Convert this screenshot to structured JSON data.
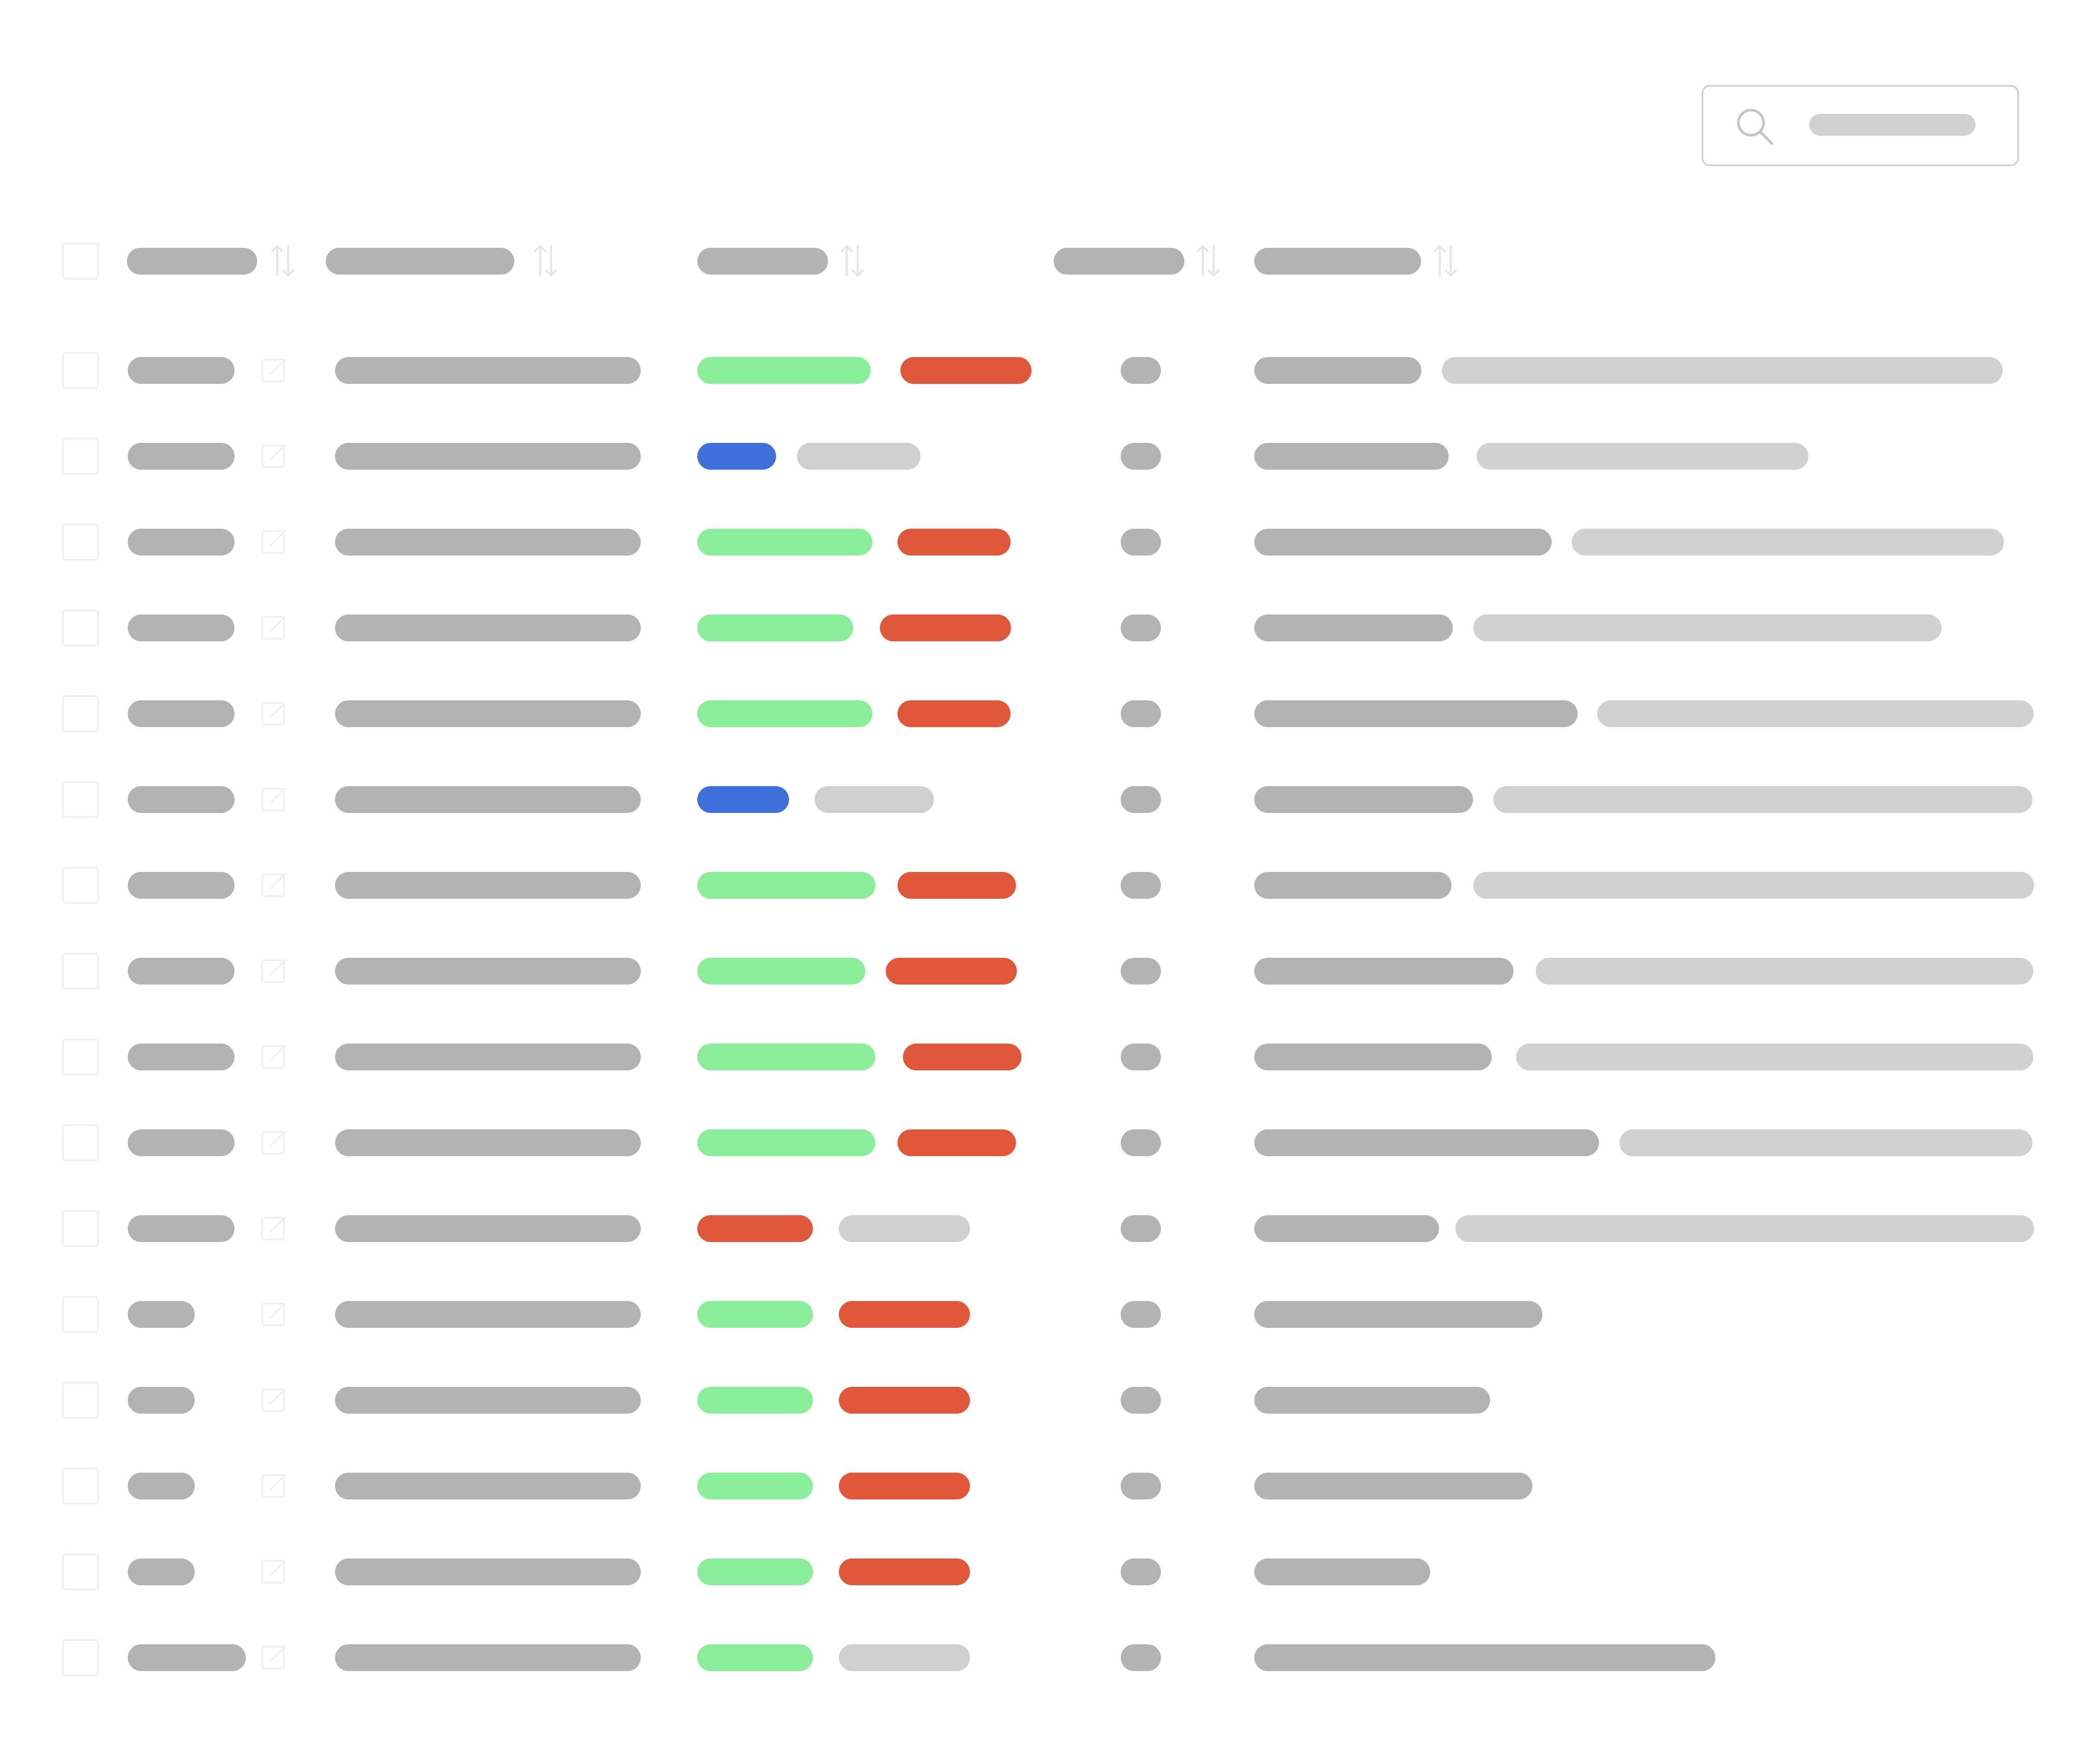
{
  "colors": {
    "text_placeholder": "#b3b3b3",
    "text_secondary": "#d1d1d1",
    "tag_green": "#8aed9a",
    "tag_red": "#e0583a",
    "tag_blue": "#3f6fd8",
    "tag_grey": "#cfcfcf",
    "border": "#efefef"
  },
  "search": {
    "icon": "search-icon",
    "placeholder": ""
  },
  "table": {
    "select_all_checkbox": "checkbox",
    "columns": [
      {
        "key": "id",
        "sort_icon": "sort-arrows-icon"
      },
      {
        "key": "name",
        "sort_icon": "sort-arrows-icon"
      },
      {
        "key": "tags",
        "sort_icon": "sort-arrows-icon"
      },
      {
        "key": "count",
        "sort_icon": "sort-arrows-icon"
      },
      {
        "key": "description",
        "sort_icon": "sort-arrows-icon"
      }
    ],
    "row_edit_icon": "edit-icon",
    "rows": [
      {
        "tags": [
          "green",
          "red"
        ]
      },
      {
        "tags": [
          "blue",
          "grey"
        ]
      },
      {
        "tags": [
          "green",
          "red"
        ]
      },
      {
        "tags": [
          "green",
          "red"
        ]
      },
      {
        "tags": [
          "green",
          "red"
        ]
      },
      {
        "tags": [
          "blue",
          "grey"
        ]
      },
      {
        "tags": [
          "green",
          "red"
        ]
      },
      {
        "tags": [
          "green",
          "red"
        ]
      },
      {
        "tags": [
          "green",
          "red"
        ]
      },
      {
        "tags": [
          "green",
          "red"
        ]
      },
      {
        "tags": [
          "red",
          "grey"
        ]
      },
      {
        "tags": [
          "green",
          "red"
        ]
      },
      {
        "tags": [
          "green",
          "red"
        ]
      },
      {
        "tags": [
          "green",
          "red"
        ]
      },
      {
        "tags": [
          "green",
          "red"
        ]
      },
      {
        "tags": [
          "green",
          "grey"
        ]
      }
    ]
  }
}
